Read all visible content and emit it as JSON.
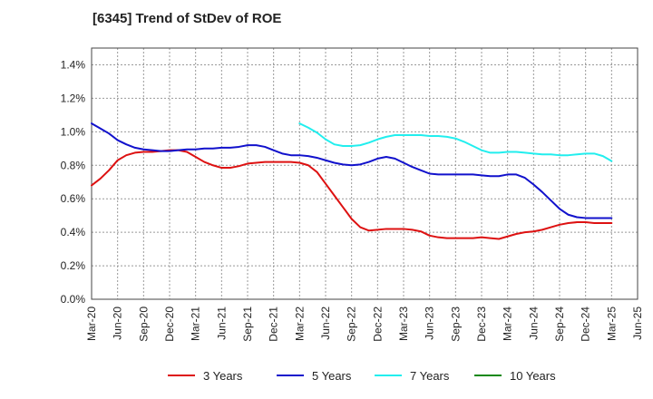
{
  "chart_data": {
    "type": "line",
    "title": "[6345]  Trend of StDev of ROE",
    "xlabel": "",
    "ylabel": "",
    "x_ticks": [
      "Mar-20",
      "Jun-20",
      "Sep-20",
      "Dec-20",
      "Mar-21",
      "Jun-21",
      "Sep-21",
      "Dec-21",
      "Mar-22",
      "Jun-22",
      "Sep-22",
      "Dec-22",
      "Mar-23",
      "Jun-23",
      "Sep-23",
      "Dec-23",
      "Mar-24",
      "Jun-24",
      "Sep-24",
      "Dec-24",
      "Mar-25",
      "Jun-25"
    ],
    "y_ticks": [
      "0.0%",
      "0.2%",
      "0.4%",
      "0.6%",
      "0.8%",
      "1.0%",
      "1.2%",
      "1.4%"
    ],
    "ylim": [
      0,
      1.5
    ],
    "grid": true,
    "legend_position": "bottom",
    "series": [
      {
        "name": "3 Years",
        "color": "#dd1111",
        "points": [
          [
            "Mar-20",
            0.68
          ],
          [
            "Apr-20",
            0.72
          ],
          [
            "May-20",
            0.77
          ],
          [
            "Jun-20",
            0.83
          ],
          [
            "Jul-20",
            0.86
          ],
          [
            "Aug-20",
            0.875
          ],
          [
            "Sep-20",
            0.88
          ],
          [
            "Oct-20",
            0.88
          ],
          [
            "Nov-20",
            0.885
          ],
          [
            "Dec-20",
            0.89
          ],
          [
            "Jan-21",
            0.89
          ],
          [
            "Feb-21",
            0.88
          ],
          [
            "Mar-21",
            0.85
          ],
          [
            "Apr-21",
            0.82
          ],
          [
            "May-21",
            0.8
          ],
          [
            "Jun-21",
            0.785
          ],
          [
            "Jul-21",
            0.785
          ],
          [
            "Aug-21",
            0.795
          ],
          [
            "Sep-21",
            0.81
          ],
          [
            "Oct-21",
            0.815
          ],
          [
            "Nov-21",
            0.82
          ],
          [
            "Dec-21",
            0.82
          ],
          [
            "Jan-22",
            0.82
          ],
          [
            "Feb-22",
            0.82
          ],
          [
            "Mar-22",
            0.815
          ],
          [
            "Apr-22",
            0.8
          ],
          [
            "May-22",
            0.76
          ],
          [
            "Jun-22",
            0.69
          ],
          [
            "Jul-22",
            0.62
          ],
          [
            "Aug-22",
            0.55
          ],
          [
            "Sep-22",
            0.48
          ],
          [
            "Oct-22",
            0.43
          ],
          [
            "Nov-22",
            0.41
          ],
          [
            "Dec-22",
            0.415
          ],
          [
            "Jan-23",
            0.42
          ],
          [
            "Feb-23",
            0.42
          ],
          [
            "Mar-23",
            0.42
          ],
          [
            "Apr-23",
            0.415
          ],
          [
            "May-23",
            0.405
          ],
          [
            "Jun-23",
            0.38
          ],
          [
            "Jul-23",
            0.37
          ],
          [
            "Aug-23",
            0.365
          ],
          [
            "Sep-23",
            0.365
          ],
          [
            "Oct-23",
            0.365
          ],
          [
            "Nov-23",
            0.365
          ],
          [
            "Dec-23",
            0.37
          ],
          [
            "Jan-24",
            0.365
          ],
          [
            "Feb-24",
            0.36
          ],
          [
            "Mar-24",
            0.375
          ],
          [
            "Apr-24",
            0.39
          ],
          [
            "May-24",
            0.4
          ],
          [
            "Jun-24",
            0.405
          ],
          [
            "Jul-24",
            0.415
          ],
          [
            "Aug-24",
            0.43
          ],
          [
            "Sep-24",
            0.445
          ],
          [
            "Oct-24",
            0.455
          ],
          [
            "Nov-24",
            0.46
          ],
          [
            "Dec-24",
            0.46
          ],
          [
            "Jan-25",
            0.455
          ],
          [
            "Feb-25",
            0.455
          ],
          [
            "Mar-25",
            0.455
          ]
        ]
      },
      {
        "name": "5 Years",
        "color": "#1111cc",
        "points": [
          [
            "Mar-20",
            1.05
          ],
          [
            "Apr-20",
            1.02
          ],
          [
            "May-20",
            0.99
          ],
          [
            "Jun-20",
            0.95
          ],
          [
            "Jul-20",
            0.925
          ],
          [
            "Aug-20",
            0.905
          ],
          [
            "Sep-20",
            0.895
          ],
          [
            "Oct-20",
            0.89
          ],
          [
            "Nov-20",
            0.885
          ],
          [
            "Dec-20",
            0.885
          ],
          [
            "Jan-21",
            0.89
          ],
          [
            "Feb-21",
            0.895
          ],
          [
            "Mar-21",
            0.895
          ],
          [
            "Apr-21",
            0.9
          ],
          [
            "May-21",
            0.9
          ],
          [
            "Jun-21",
            0.905
          ],
          [
            "Jul-21",
            0.905
          ],
          [
            "Aug-21",
            0.91
          ],
          [
            "Sep-21",
            0.92
          ],
          [
            "Oct-21",
            0.92
          ],
          [
            "Nov-21",
            0.91
          ],
          [
            "Dec-21",
            0.89
          ],
          [
            "Jan-22",
            0.87
          ],
          [
            "Feb-22",
            0.86
          ],
          [
            "Mar-22",
            0.86
          ],
          [
            "Apr-22",
            0.855
          ],
          [
            "May-22",
            0.845
          ],
          [
            "Jun-22",
            0.83
          ],
          [
            "Jul-22",
            0.815
          ],
          [
            "Aug-22",
            0.805
          ],
          [
            "Sep-22",
            0.8
          ],
          [
            "Oct-22",
            0.805
          ],
          [
            "Nov-22",
            0.82
          ],
          [
            "Dec-22",
            0.84
          ],
          [
            "Jan-23",
            0.85
          ],
          [
            "Feb-23",
            0.84
          ],
          [
            "Mar-23",
            0.815
          ],
          [
            "Apr-23",
            0.79
          ],
          [
            "May-23",
            0.77
          ],
          [
            "Jun-23",
            0.75
          ],
          [
            "Jul-23",
            0.745
          ],
          [
            "Aug-23",
            0.745
          ],
          [
            "Sep-23",
            0.745
          ],
          [
            "Oct-23",
            0.745
          ],
          [
            "Nov-23",
            0.745
          ],
          [
            "Dec-23",
            0.74
          ],
          [
            "Jan-24",
            0.735
          ],
          [
            "Feb-24",
            0.735
          ],
          [
            "Mar-24",
            0.745
          ],
          [
            "Apr-24",
            0.745
          ],
          [
            "May-24",
            0.725
          ],
          [
            "Jun-24",
            0.685
          ],
          [
            "Jul-24",
            0.64
          ],
          [
            "Aug-24",
            0.59
          ],
          [
            "Sep-24",
            0.54
          ],
          [
            "Oct-24",
            0.505
          ],
          [
            "Nov-24",
            0.49
          ],
          [
            "Dec-24",
            0.485
          ],
          [
            "Jan-25",
            0.485
          ],
          [
            "Feb-25",
            0.485
          ],
          [
            "Mar-25",
            0.485
          ]
        ]
      },
      {
        "name": "7 Years",
        "color": "#22eeee",
        "points": [
          [
            "Mar-22",
            1.05
          ],
          [
            "Apr-22",
            1.025
          ],
          [
            "May-22",
            0.995
          ],
          [
            "Jun-22",
            0.955
          ],
          [
            "Jul-22",
            0.925
          ],
          [
            "Aug-22",
            0.915
          ],
          [
            "Sep-22",
            0.915
          ],
          [
            "Oct-22",
            0.92
          ],
          [
            "Nov-22",
            0.935
          ],
          [
            "Dec-22",
            0.955
          ],
          [
            "Jan-23",
            0.97
          ],
          [
            "Feb-23",
            0.98
          ],
          [
            "Mar-23",
            0.98
          ],
          [
            "Apr-23",
            0.98
          ],
          [
            "May-23",
            0.98
          ],
          [
            "Jun-23",
            0.975
          ],
          [
            "Jul-23",
            0.975
          ],
          [
            "Aug-23",
            0.97
          ],
          [
            "Sep-23",
            0.96
          ],
          [
            "Oct-23",
            0.94
          ],
          [
            "Nov-23",
            0.915
          ],
          [
            "Dec-23",
            0.89
          ],
          [
            "Jan-24",
            0.875
          ],
          [
            "Feb-24",
            0.875
          ],
          [
            "Mar-24",
            0.88
          ],
          [
            "Apr-24",
            0.88
          ],
          [
            "May-24",
            0.875
          ],
          [
            "Jun-24",
            0.87
          ],
          [
            "Jul-24",
            0.865
          ],
          [
            "Aug-24",
            0.865
          ],
          [
            "Sep-24",
            0.86
          ],
          [
            "Oct-24",
            0.86
          ],
          [
            "Nov-24",
            0.865
          ],
          [
            "Dec-24",
            0.87
          ],
          [
            "Jan-25",
            0.87
          ],
          [
            "Feb-25",
            0.855
          ],
          [
            "Mar-25",
            0.825
          ]
        ]
      },
      {
        "name": "10 Years",
        "color": "#118811",
        "points": []
      }
    ]
  }
}
